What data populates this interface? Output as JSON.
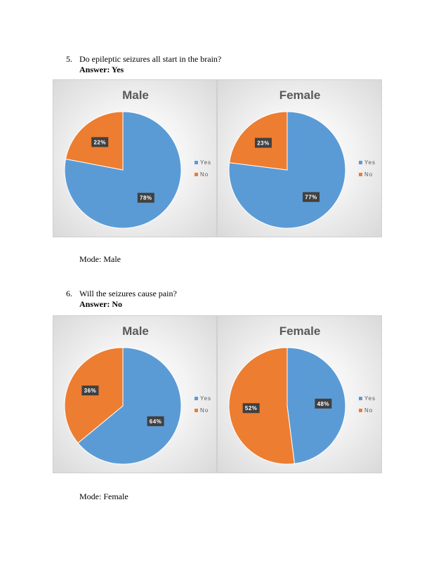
{
  "questions": [
    {
      "number": "5.",
      "text": "Do epileptic  seizures  all start in the brain?",
      "answer": "Answer:  Yes",
      "mode": "Mode: Male"
    },
    {
      "number": "6.",
      "text": "Will the seizures  cause pain?",
      "answer": "Answer:  No",
      "mode": "Mode: Female"
    }
  ],
  "colors": {
    "yes": "#5b9bd5",
    "no": "#ed7d31",
    "label_bg": "#404040"
  },
  "chart_data": [
    {
      "type": "pie",
      "title": "Male",
      "categories": [
        "Yes",
        "No"
      ],
      "values": [
        78,
        22
      ],
      "labels": [
        "78%",
        "22%"
      ],
      "legend": "right"
    },
    {
      "type": "pie",
      "title": "Female",
      "categories": [
        "Yes",
        "No"
      ],
      "values": [
        77,
        23
      ],
      "labels": [
        "77%",
        "23%"
      ],
      "legend": "right"
    },
    {
      "type": "pie",
      "title": "Male",
      "categories": [
        "Yes",
        "No"
      ],
      "values": [
        64,
        36
      ],
      "labels": [
        "64%",
        "36%"
      ],
      "legend": "right"
    },
    {
      "type": "pie",
      "title": "Female",
      "categories": [
        "Yes",
        "No"
      ],
      "values": [
        48,
        52
      ],
      "labels": [
        "48%",
        "52%"
      ],
      "legend": "right"
    }
  ]
}
